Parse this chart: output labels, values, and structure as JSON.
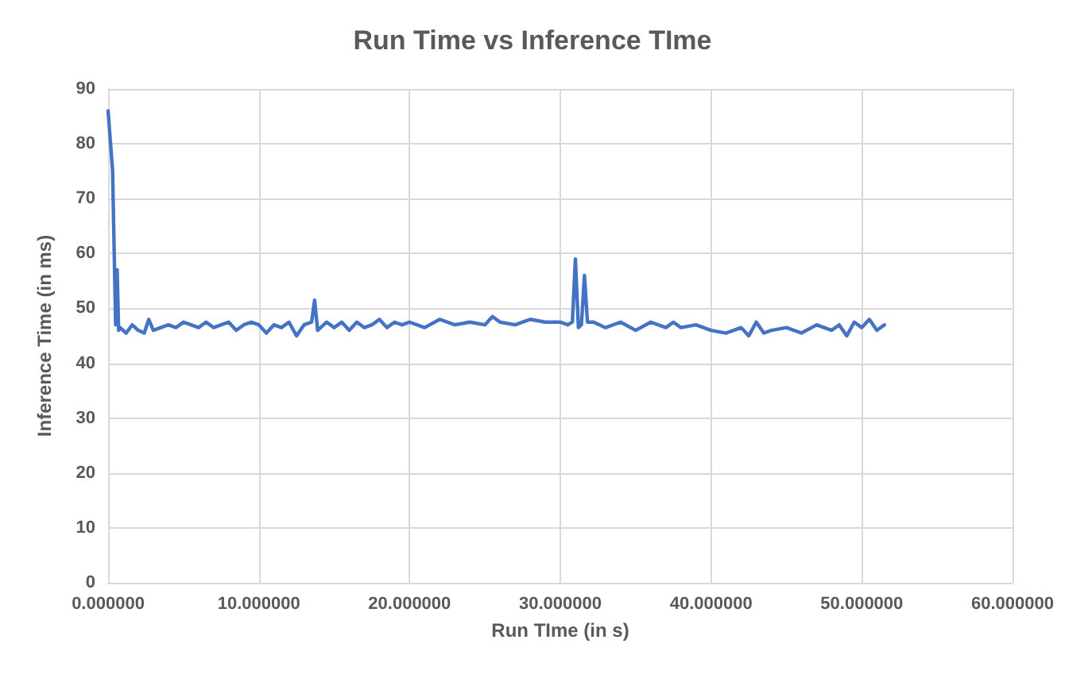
{
  "chart_data": {
    "type": "line",
    "title": "Run Time vs Inference TIme",
    "xlabel": "Run TIme (in s)",
    "ylabel": "Inference Time (in ms)",
    "series": [
      {
        "color": "#4472c4",
        "x": [
          0,
          0.3,
          0.5,
          0.6,
          0.7,
          0.8,
          1.2,
          1.6,
          2,
          2.4,
          2.7,
          3,
          3.5,
          4,
          4.5,
          5,
          5.5,
          6,
          6.5,
          7,
          7.5,
          8,
          8.5,
          9,
          9.5,
          10,
          10.5,
          11,
          11.5,
          12,
          12.5,
          13,
          13.5,
          13.7,
          13.9,
          14.5,
          15,
          15.5,
          16,
          16.5,
          17,
          17.5,
          18,
          18.5,
          19,
          19.5,
          20,
          21,
          22,
          23,
          24,
          25,
          25.5,
          26,
          27,
          28,
          29,
          30,
          30.5,
          30.8,
          31,
          31.2,
          31.4,
          31.6,
          31.8,
          32.2,
          33,
          34,
          35,
          36,
          37,
          37.5,
          38,
          39,
          40,
          41,
          42,
          42.5,
          43,
          43.5,
          44,
          45,
          46,
          47,
          48,
          48.5,
          49,
          49.5,
          50,
          50.5,
          51,
          51.5
        ],
        "values": [
          86,
          75,
          47,
          57,
          46,
          46.5,
          45.5,
          47,
          46,
          45.5,
          48,
          46,
          46.5,
          47,
          46.5,
          47.5,
          47,
          46.5,
          47.5,
          46.5,
          47,
          47.5,
          46,
          47,
          47.5,
          47,
          45.5,
          47,
          46.5,
          47.5,
          45,
          47,
          47.5,
          51.5,
          46,
          47.5,
          46.5,
          47.5,
          46,
          47.5,
          46.5,
          47,
          48,
          46.5,
          47.5,
          47,
          47.5,
          46.5,
          48,
          47,
          47.5,
          47,
          48.5,
          47.5,
          47,
          48,
          47.5,
          47.5,
          47,
          47.5,
          59,
          46.5,
          47,
          56,
          47.5,
          47.5,
          46.5,
          47.5,
          46,
          47.5,
          46.5,
          47.5,
          46.5,
          47,
          46,
          45.5,
          46.5,
          45,
          47.5,
          45.5,
          46,
          46.5,
          45.5,
          47,
          46,
          47,
          45,
          47.5,
          46.5,
          48,
          46,
          47
        ]
      }
    ],
    "xlim": [
      0,
      60
    ],
    "xticks": [
      {
        "value": 0,
        "label": "0.000000"
      },
      {
        "value": 10,
        "label": "10.000000"
      },
      {
        "value": 20,
        "label": "20.000000"
      },
      {
        "value": 30,
        "label": "30.000000"
      },
      {
        "value": 40,
        "label": "40.000000"
      },
      {
        "value": 50,
        "label": "50.000000"
      },
      {
        "value": 60,
        "label": "60.000000"
      }
    ],
    "ylim": [
      0,
      90
    ],
    "yticks": [
      0,
      10,
      20,
      30,
      40,
      50,
      60,
      70,
      80,
      90
    ],
    "grid": true,
    "marker": "none",
    "line_style": "solid"
  }
}
